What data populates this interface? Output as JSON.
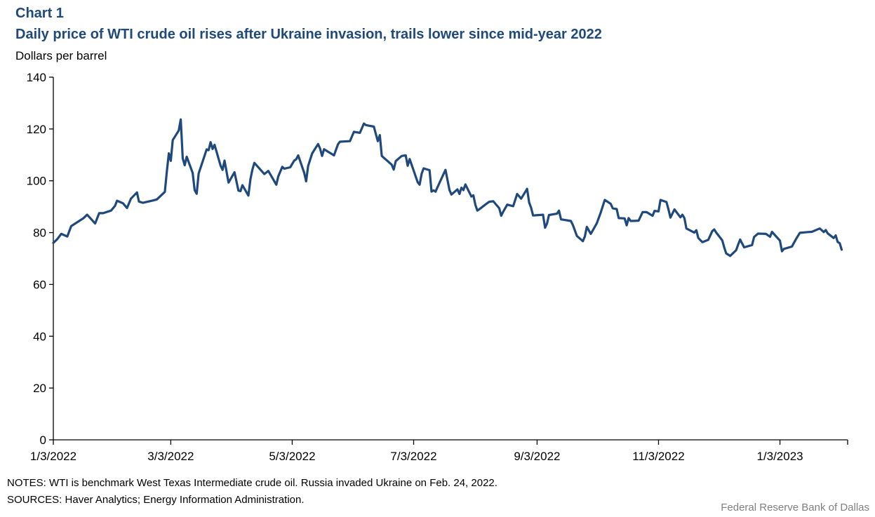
{
  "header": {
    "chart_label": "Chart 1",
    "title": "Daily price of WTI crude oil rises after Ukraine invasion, trails lower since mid-year  2022",
    "unit_label": "Dollars per barrel"
  },
  "footer": {
    "notes": "NOTES: WTI is benchmark  West Texas Intermediate  crude oil. Russia invaded Ukraine on Feb. 24, 2022.",
    "sources": "SOURCES:  Haver Analytics;  Energy  Information  Administration.",
    "credit": "Federal Reserve  Bank of Dallas"
  },
  "chart_data": {
    "type": "line",
    "title": "Daily price of WTI crude oil rises after Ukraine invasion, trails lower since mid-year  2022",
    "xlabel": "",
    "ylabel": "Dollars per barrel",
    "ylim": [
      0,
      140
    ],
    "yticks": [
      0,
      20,
      40,
      60,
      80,
      100,
      120,
      140
    ],
    "xlim": [
      "2022-01-03",
      "2023-02-06"
    ],
    "xticks": [
      {
        "date": "2022-01-03",
        "label": "1/3/2022"
      },
      {
        "date": "2022-03-03",
        "label": "3/3/2022"
      },
      {
        "date": "2022-05-03",
        "label": "5/3/2022"
      },
      {
        "date": "2022-07-03",
        "label": "7/3/2022"
      },
      {
        "date": "2022-09-03",
        "label": "9/3/2022"
      },
      {
        "date": "2022-11-03",
        "label": "11/3/2022"
      },
      {
        "date": "2023-01-03",
        "label": "1/3/2023"
      }
    ],
    "grid": false,
    "legend": "none",
    "colors": {
      "line": "#1f497d",
      "axis": "#000000"
    },
    "series": [
      {
        "points": [
          [
            "2022-01-03",
            76.0
          ],
          [
            "2022-01-05",
            77.5
          ],
          [
            "2022-01-07",
            79.5
          ],
          [
            "2022-01-10",
            78.5
          ],
          [
            "2022-01-12",
            82.5
          ],
          [
            "2022-01-14",
            83.5
          ],
          [
            "2022-01-18",
            85.5
          ],
          [
            "2022-01-20",
            86.9
          ],
          [
            "2022-01-24",
            83.5
          ],
          [
            "2022-01-26",
            87.5
          ],
          [
            "2022-01-28",
            87.5
          ],
          [
            "2022-02-01",
            88.5
          ],
          [
            "2022-02-03",
            90.3
          ],
          [
            "2022-02-04",
            92.3
          ],
          [
            "2022-02-07",
            91.3
          ],
          [
            "2022-02-09",
            89.5
          ],
          [
            "2022-02-11",
            93.1
          ],
          [
            "2022-02-14",
            95.5
          ],
          [
            "2022-02-15",
            92.0
          ],
          [
            "2022-02-17",
            91.5
          ],
          [
            "2022-02-22",
            92.4
          ],
          [
            "2022-02-24",
            92.8
          ],
          [
            "2022-02-28",
            95.7
          ],
          [
            "2022-03-01",
            103.4
          ],
          [
            "2022-03-02",
            110.6
          ],
          [
            "2022-03-03",
            107.7
          ],
          [
            "2022-03-04",
            115.7
          ],
          [
            "2022-03-07",
            119.4
          ],
          [
            "2022-03-08",
            123.7
          ],
          [
            "2022-03-09",
            108.7
          ],
          [
            "2022-03-10",
            106.0
          ],
          [
            "2022-03-11",
            109.3
          ],
          [
            "2022-03-14",
            103.0
          ],
          [
            "2022-03-15",
            96.4
          ],
          [
            "2022-03-16",
            95.0
          ],
          [
            "2022-03-17",
            102.8
          ],
          [
            "2022-03-21",
            112.1
          ],
          [
            "2022-03-22",
            111.8
          ],
          [
            "2022-03-23",
            114.9
          ],
          [
            "2022-03-24",
            112.3
          ],
          [
            "2022-03-25",
            113.9
          ],
          [
            "2022-03-28",
            105.9
          ],
          [
            "2022-03-29",
            104.2
          ],
          [
            "2022-03-30",
            107.8
          ],
          [
            "2022-04-01",
            99.3
          ],
          [
            "2022-04-04",
            103.3
          ],
          [
            "2022-04-06",
            96.2
          ],
          [
            "2022-04-07",
            96.0
          ],
          [
            "2022-04-08",
            98.3
          ],
          [
            "2022-04-11",
            94.3
          ],
          [
            "2022-04-12",
            100.6
          ],
          [
            "2022-04-13",
            104.3
          ],
          [
            "2022-04-14",
            106.9
          ],
          [
            "2022-04-19",
            102.6
          ],
          [
            "2022-04-21",
            103.8
          ],
          [
            "2022-04-25",
            98.5
          ],
          [
            "2022-04-26",
            101.7
          ],
          [
            "2022-04-28",
            105.4
          ],
          [
            "2022-04-29",
            104.7
          ],
          [
            "2022-05-02",
            105.2
          ],
          [
            "2022-05-04",
            107.8
          ],
          [
            "2022-05-05",
            108.3
          ],
          [
            "2022-05-06",
            109.8
          ],
          [
            "2022-05-09",
            103.1
          ],
          [
            "2022-05-10",
            99.8
          ],
          [
            "2022-05-11",
            105.7
          ],
          [
            "2022-05-13",
            110.5
          ],
          [
            "2022-05-16",
            114.2
          ],
          [
            "2022-05-17",
            112.4
          ],
          [
            "2022-05-18",
            109.6
          ],
          [
            "2022-05-19",
            112.2
          ],
          [
            "2022-05-23",
            110.3
          ],
          [
            "2022-05-24",
            109.8
          ],
          [
            "2022-05-26",
            114.1
          ],
          [
            "2022-05-27",
            115.1
          ],
          [
            "2022-06-01",
            115.3
          ],
          [
            "2022-06-03",
            118.9
          ],
          [
            "2022-06-06",
            118.5
          ],
          [
            "2022-06-08",
            122.1
          ],
          [
            "2022-06-09",
            121.5
          ],
          [
            "2022-06-13",
            120.9
          ],
          [
            "2022-06-15",
            115.3
          ],
          [
            "2022-06-16",
            117.6
          ],
          [
            "2022-06-17",
            109.6
          ],
          [
            "2022-06-22",
            106.2
          ],
          [
            "2022-06-23",
            104.3
          ],
          [
            "2022-06-24",
            107.6
          ],
          [
            "2022-06-27",
            109.6
          ],
          [
            "2022-06-29",
            109.8
          ],
          [
            "2022-06-30",
            105.8
          ],
          [
            "2022-07-01",
            108.4
          ],
          [
            "2022-07-05",
            99.5
          ],
          [
            "2022-07-06",
            98.5
          ],
          [
            "2022-07-07",
            102.7
          ],
          [
            "2022-07-08",
            104.8
          ],
          [
            "2022-07-11",
            104.1
          ],
          [
            "2022-07-12",
            95.8
          ],
          [
            "2022-07-13",
            96.3
          ],
          [
            "2022-07-14",
            95.8
          ],
          [
            "2022-07-15",
            97.6
          ],
          [
            "2022-07-18",
            102.6
          ],
          [
            "2022-07-19",
            104.2
          ],
          [
            "2022-07-21",
            96.4
          ],
          [
            "2022-07-22",
            94.7
          ],
          [
            "2022-07-25",
            96.7
          ],
          [
            "2022-07-26",
            94.9
          ],
          [
            "2022-07-27",
            97.3
          ],
          [
            "2022-07-28",
            96.4
          ],
          [
            "2022-07-29",
            98.6
          ],
          [
            "2022-08-01",
            93.9
          ],
          [
            "2022-08-02",
            94.4
          ],
          [
            "2022-08-03",
            90.7
          ],
          [
            "2022-08-04",
            88.5
          ],
          [
            "2022-08-05",
            89.0
          ],
          [
            "2022-08-08",
            90.8
          ],
          [
            "2022-08-10",
            91.9
          ],
          [
            "2022-08-12",
            92.1
          ],
          [
            "2022-08-15",
            89.4
          ],
          [
            "2022-08-16",
            86.5
          ],
          [
            "2022-08-17",
            88.1
          ],
          [
            "2022-08-19",
            90.8
          ],
          [
            "2022-08-22",
            90.2
          ],
          [
            "2022-08-24",
            94.9
          ],
          [
            "2022-08-26",
            93.1
          ],
          [
            "2022-08-29",
            96.9
          ],
          [
            "2022-08-30",
            91.6
          ],
          [
            "2022-08-31",
            89.6
          ],
          [
            "2022-09-01",
            86.6
          ],
          [
            "2022-09-06",
            86.9
          ],
          [
            "2022-09-07",
            81.9
          ],
          [
            "2022-09-08",
            83.5
          ],
          [
            "2022-09-09",
            86.8
          ],
          [
            "2022-09-13",
            87.3
          ],
          [
            "2022-09-14",
            88.5
          ],
          [
            "2022-09-15",
            85.1
          ],
          [
            "2022-09-20",
            84.5
          ],
          [
            "2022-09-21",
            82.9
          ],
          [
            "2022-09-23",
            78.7
          ],
          [
            "2022-09-26",
            76.7
          ],
          [
            "2022-09-27",
            78.5
          ],
          [
            "2022-09-28",
            82.2
          ],
          [
            "2022-09-30",
            79.5
          ],
          [
            "2022-10-03",
            83.6
          ],
          [
            "2022-10-05",
            87.8
          ],
          [
            "2022-10-07",
            92.6
          ],
          [
            "2022-10-10",
            91.1
          ],
          [
            "2022-10-11",
            89.4
          ],
          [
            "2022-10-13",
            89.1
          ],
          [
            "2022-10-14",
            85.6
          ],
          [
            "2022-10-17",
            85.5
          ],
          [
            "2022-10-18",
            82.8
          ],
          [
            "2022-10-19",
            85.6
          ],
          [
            "2022-10-20",
            84.5
          ],
          [
            "2022-10-24",
            84.6
          ],
          [
            "2022-10-26",
            87.9
          ],
          [
            "2022-10-28",
            87.9
          ],
          [
            "2022-10-31",
            86.5
          ],
          [
            "2022-11-01",
            88.4
          ],
          [
            "2022-11-03",
            88.2
          ],
          [
            "2022-11-04",
            92.6
          ],
          [
            "2022-11-07",
            91.8
          ],
          [
            "2022-11-08",
            88.9
          ],
          [
            "2022-11-09",
            85.8
          ],
          [
            "2022-11-11",
            88.96
          ],
          [
            "2022-11-14",
            85.9
          ],
          [
            "2022-11-15",
            86.9
          ],
          [
            "2022-11-16",
            85.6
          ],
          [
            "2022-11-17",
            81.6
          ],
          [
            "2022-11-21",
            80.0
          ],
          [
            "2022-11-22",
            80.9
          ],
          [
            "2022-11-23",
            77.9
          ],
          [
            "2022-11-25",
            76.3
          ],
          [
            "2022-11-28",
            77.2
          ],
          [
            "2022-11-30",
            80.6
          ],
          [
            "2022-12-01",
            81.2
          ],
          [
            "2022-12-02",
            80.0
          ],
          [
            "2022-12-05",
            77.0
          ],
          [
            "2022-12-06",
            74.3
          ],
          [
            "2022-12-07",
            72.0
          ],
          [
            "2022-12-08",
            71.5
          ],
          [
            "2022-12-09",
            71.0
          ],
          [
            "2022-12-12",
            73.2
          ],
          [
            "2022-12-13",
            75.4
          ],
          [
            "2022-12-14",
            77.3
          ],
          [
            "2022-12-16",
            74.3
          ],
          [
            "2022-12-20",
            75.2
          ],
          [
            "2022-12-21",
            78.3
          ],
          [
            "2022-12-23",
            79.6
          ],
          [
            "2022-12-27",
            79.5
          ],
          [
            "2022-12-28",
            78.96
          ],
          [
            "2022-12-29",
            78.4
          ],
          [
            "2022-12-30",
            80.3
          ],
          [
            "2023-01-03",
            76.9
          ],
          [
            "2023-01-04",
            72.8
          ],
          [
            "2023-01-05",
            73.7
          ],
          [
            "2023-01-09",
            74.6
          ],
          [
            "2023-01-11",
            77.4
          ],
          [
            "2023-01-13",
            79.9
          ],
          [
            "2023-01-17",
            80.2
          ],
          [
            "2023-01-19",
            80.3
          ],
          [
            "2023-01-23",
            81.6
          ],
          [
            "2023-01-25",
            80.2
          ],
          [
            "2023-01-26",
            81.0
          ],
          [
            "2023-01-27",
            79.7
          ],
          [
            "2023-01-30",
            77.9
          ],
          [
            "2023-01-31",
            78.9
          ],
          [
            "2023-02-01",
            76.4
          ],
          [
            "2023-02-02",
            75.9
          ],
          [
            "2023-02-03",
            73.4
          ]
        ]
      }
    ]
  }
}
